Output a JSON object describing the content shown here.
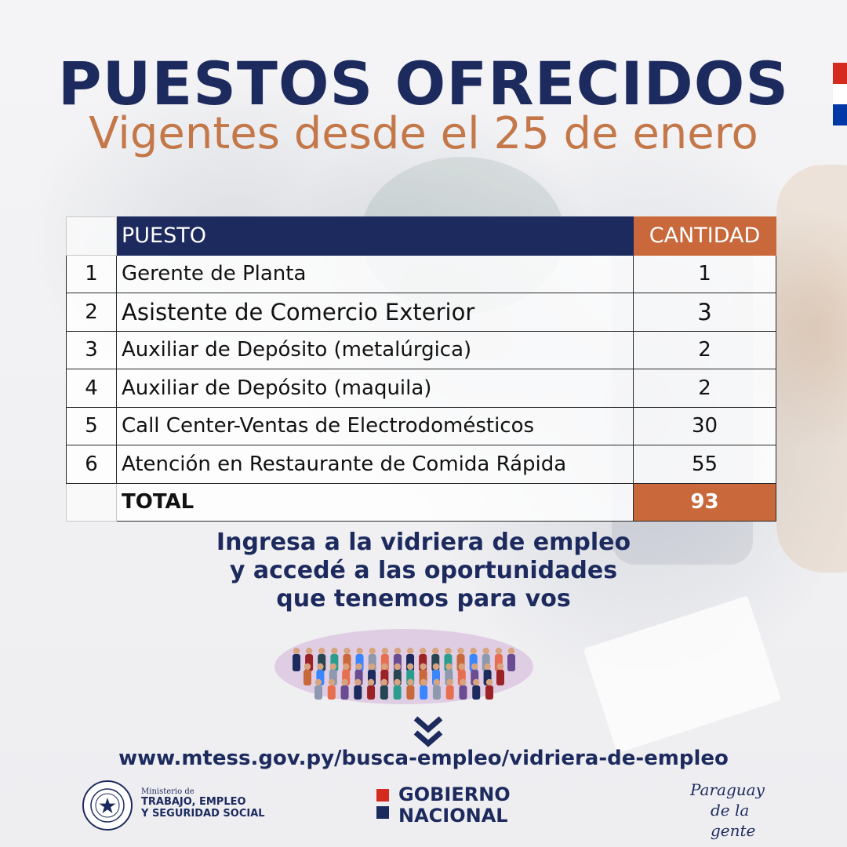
{
  "header": {
    "title": "PUESTOS OFRECIDOS",
    "subtitle": "Vigentes desde el 25 de enero"
  },
  "table": {
    "headers": {
      "number": "",
      "position": "PUESTO",
      "quantity": "CANTIDAD"
    },
    "rows": [
      {
        "number": "1",
        "position": "Gerente de Planta",
        "quantity": "1"
      },
      {
        "number": "2",
        "position": "Asistente de Comercio Exterior",
        "quantity": "3"
      },
      {
        "number": "3",
        "position": "Auxiliar de Depósito (metalúrgica)",
        "quantity": "2"
      },
      {
        "number": "4",
        "position": "Auxiliar de Depósito (maquila)",
        "quantity": "2"
      },
      {
        "number": "5",
        "position": "Call Center-Ventas de Electrodomésticos",
        "quantity": "30"
      },
      {
        "number": "6",
        "position": "Atención en Restaurante de Comida Rápida",
        "quantity": "55"
      }
    ],
    "total": {
      "label": "TOTAL",
      "value": "93"
    }
  },
  "cta": {
    "line1": "Ingresa a la vidriera de empleo",
    "line2": "y accedé a las oportunidades",
    "line3": "que tenemos para vos"
  },
  "url": "www.mtess.gov.py/busca-empleo/vidriera-de-empleo",
  "footer": {
    "ministry_line1": "Ministerio de",
    "ministry_line2": "TRABAJO, EMPLEO",
    "ministry_line3": "Y SEGURIDAD SOCIAL",
    "gobierno_line1": "GOBIERNO",
    "gobierno_line2": "NACIONAL",
    "slogan_line1": "Paraguay",
    "slogan_line2": "de la gente"
  },
  "icons": {
    "crowd": "crowd-illustration",
    "chevron": "double-chevron-down-icon",
    "seal": "national-seal-icon"
  },
  "colors": {
    "navy": "#1c2a5e",
    "orange": "#c8683b",
    "subtitle": "#c4784a"
  }
}
